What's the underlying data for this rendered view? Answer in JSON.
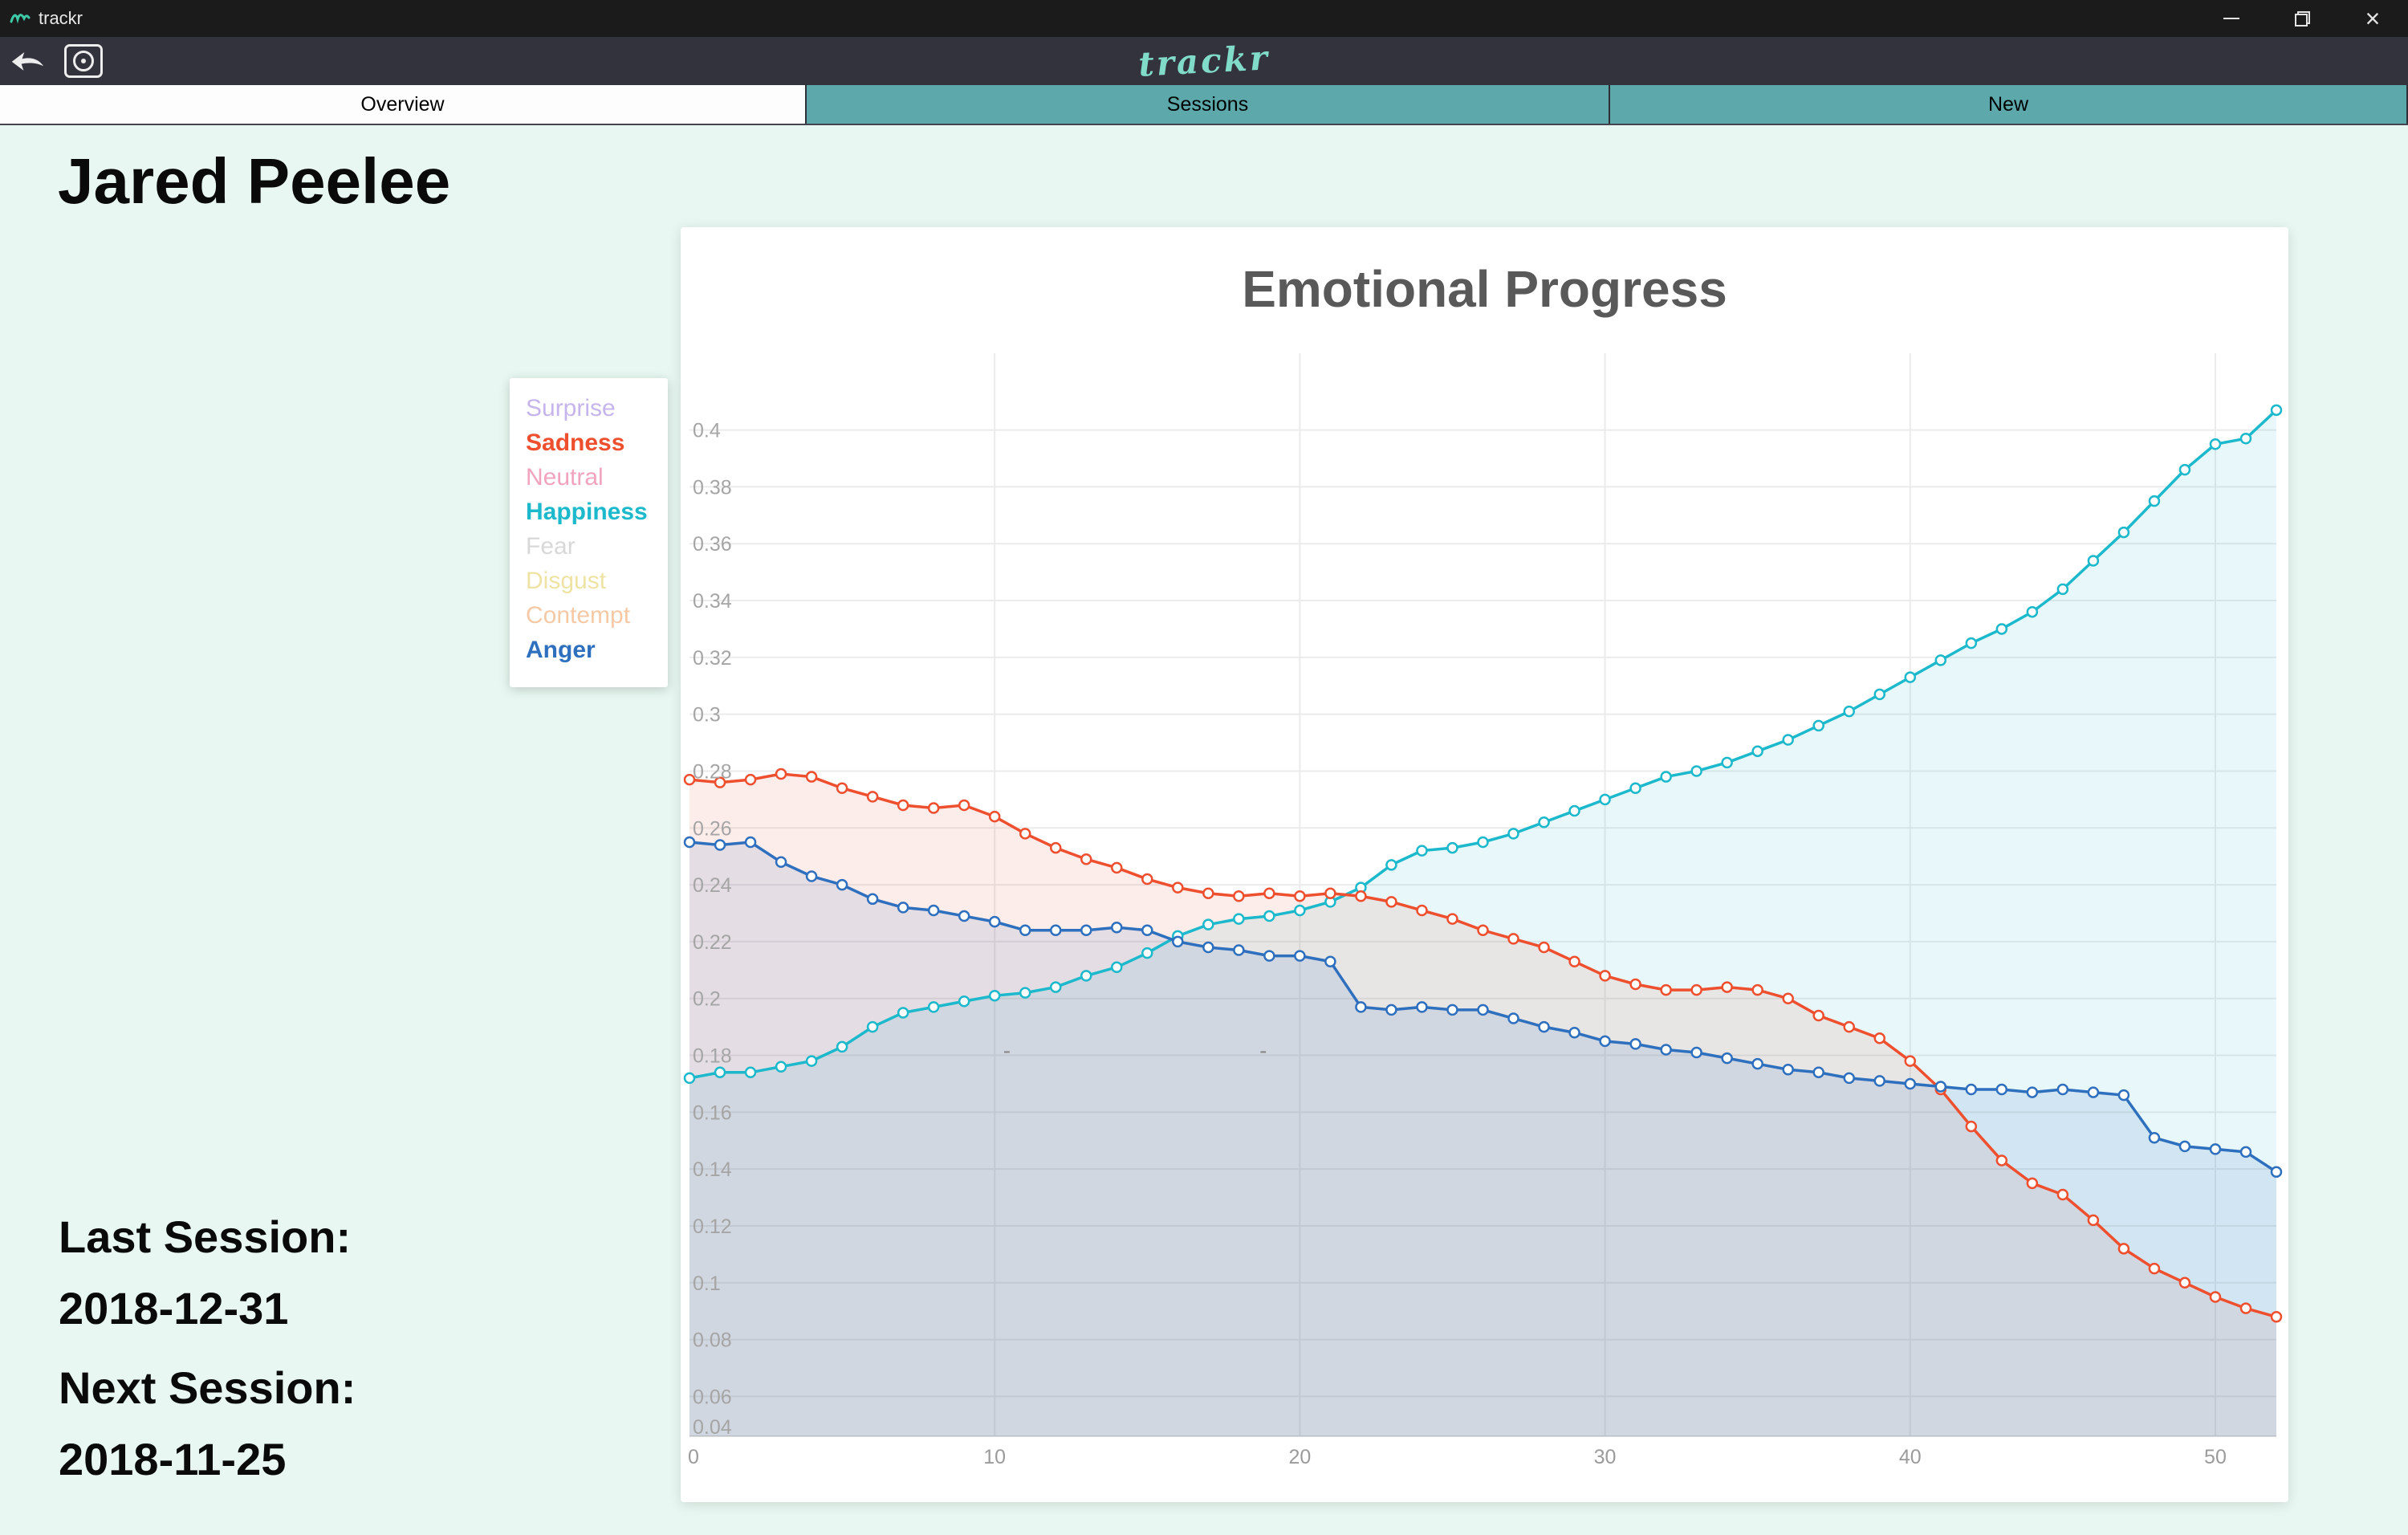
{
  "window": {
    "app_title": "trackr",
    "close_glyph": "×"
  },
  "toolbar": {
    "logo_text": "trackr"
  },
  "tabs": [
    {
      "label": "Overview",
      "active": true
    },
    {
      "label": "Sessions",
      "active": false
    },
    {
      "label": "New",
      "active": false
    }
  ],
  "overview": {
    "patient_name": "Jared Peelee",
    "last_session_label": "Last Session:",
    "last_session_date": "2018-12-31",
    "next_session_label": "Next Session:",
    "next_session_date": "2018-11-25"
  },
  "legend": {
    "items": [
      {
        "label": "Surprise",
        "color": "#c6b5ec",
        "active": false
      },
      {
        "label": "Sadness",
        "color": "#ee4f2e",
        "active": true
      },
      {
        "label": "Neutral",
        "color": "#f2a3bd",
        "active": false
      },
      {
        "label": "Happiness",
        "color": "#1cb8cb",
        "active": true
      },
      {
        "label": "Fear",
        "color": "#d8d8d8",
        "active": false
      },
      {
        "label": "Disgust",
        "color": "#eee3a3",
        "active": false
      },
      {
        "label": "Contempt",
        "color": "#f6c9a6",
        "active": false
      },
      {
        "label": "Anger",
        "color": "#2e6fbe",
        "active": true
      }
    ]
  },
  "chart_data": {
    "type": "line",
    "title": "Emotional Progress",
    "xlabel": "",
    "ylabel": "",
    "xlim": [
      0,
      52
    ],
    "ylim": [
      0.046,
      0.427
    ],
    "x_ticks": [
      0,
      10,
      20,
      30,
      40,
      50
    ],
    "y_ticks": [
      0.04,
      0.06,
      0.08,
      0.1,
      0.12,
      0.14,
      0.16,
      0.18,
      0.2,
      0.22,
      0.24,
      0.26,
      0.28,
      0.3,
      0.32,
      0.34,
      0.36,
      0.38,
      0.4
    ],
    "grid": true,
    "legend_position": "outside-left",
    "x": [
      0,
      1,
      2,
      3,
      4,
      5,
      6,
      7,
      8,
      9,
      10,
      11,
      12,
      13,
      14,
      15,
      16,
      17,
      18,
      19,
      20,
      21,
      22,
      23,
      24,
      25,
      26,
      27,
      28,
      29,
      30,
      31,
      32,
      33,
      34,
      35,
      36,
      37,
      38,
      39,
      40,
      41,
      42,
      43,
      44,
      45,
      46,
      47,
      48,
      49,
      50,
      51,
      52
    ],
    "series": [
      {
        "name": "Happiness",
        "color": "#1cb8cb",
        "fill": "rgba(28,184,203,0.10)",
        "values": [
          0.172,
          0.174,
          0.174,
          0.176,
          0.178,
          0.183,
          0.19,
          0.195,
          0.197,
          0.199,
          0.201,
          0.202,
          0.204,
          0.208,
          0.211,
          0.216,
          0.222,
          0.226,
          0.228,
          0.229,
          0.231,
          0.234,
          0.239,
          0.247,
          0.252,
          0.253,
          0.255,
          0.258,
          0.262,
          0.266,
          0.27,
          0.274,
          0.278,
          0.28,
          0.283,
          0.287,
          0.291,
          0.296,
          0.301,
          0.307,
          0.313,
          0.319,
          0.325,
          0.33,
          0.336,
          0.344,
          0.354,
          0.364,
          0.375,
          0.386,
          0.395,
          0.397,
          0.407
        ]
      },
      {
        "name": "Sadness",
        "color": "#ee4f2e",
        "fill": "rgba(238,79,46,0.10)",
        "values": [
          0.277,
          0.276,
          0.277,
          0.279,
          0.278,
          0.274,
          0.271,
          0.268,
          0.267,
          0.268,
          0.264,
          0.258,
          0.253,
          0.249,
          0.246,
          0.242,
          0.239,
          0.237,
          0.236,
          0.237,
          0.236,
          0.237,
          0.236,
          0.234,
          0.231,
          0.228,
          0.224,
          0.221,
          0.218,
          0.213,
          0.208,
          0.205,
          0.203,
          0.203,
          0.204,
          0.203,
          0.2,
          0.194,
          0.19,
          0.186,
          0.178,
          0.168,
          0.155,
          0.143,
          0.135,
          0.131,
          0.122,
          0.112,
          0.105,
          0.1,
          0.095,
          0.091,
          0.088
        ]
      },
      {
        "name": "Anger",
        "color": "#2e6fbe",
        "fill": "rgba(46,111,190,0.12)",
        "values": [
          0.255,
          0.254,
          0.255,
          0.248,
          0.243,
          0.24,
          0.235,
          0.232,
          0.231,
          0.229,
          0.227,
          0.224,
          0.224,
          0.224,
          0.225,
          0.224,
          0.22,
          0.218,
          0.217,
          0.215,
          0.215,
          0.213,
          0.197,
          0.196,
          0.197,
          0.196,
          0.196,
          0.193,
          0.19,
          0.188,
          0.185,
          0.184,
          0.182,
          0.181,
          0.179,
          0.177,
          0.175,
          0.174,
          0.172,
          0.171,
          0.17,
          0.169,
          0.168,
          0.168,
          0.167,
          0.168,
          0.167,
          0.166,
          0.151,
          0.148,
          0.147,
          0.146,
          0.139
        ]
      }
    ],
    "annotations": [
      {
        "text": "-",
        "x": 10.4,
        "y": 0.179
      },
      {
        "text": "-",
        "x": 18.8,
        "y": 0.179
      }
    ]
  }
}
